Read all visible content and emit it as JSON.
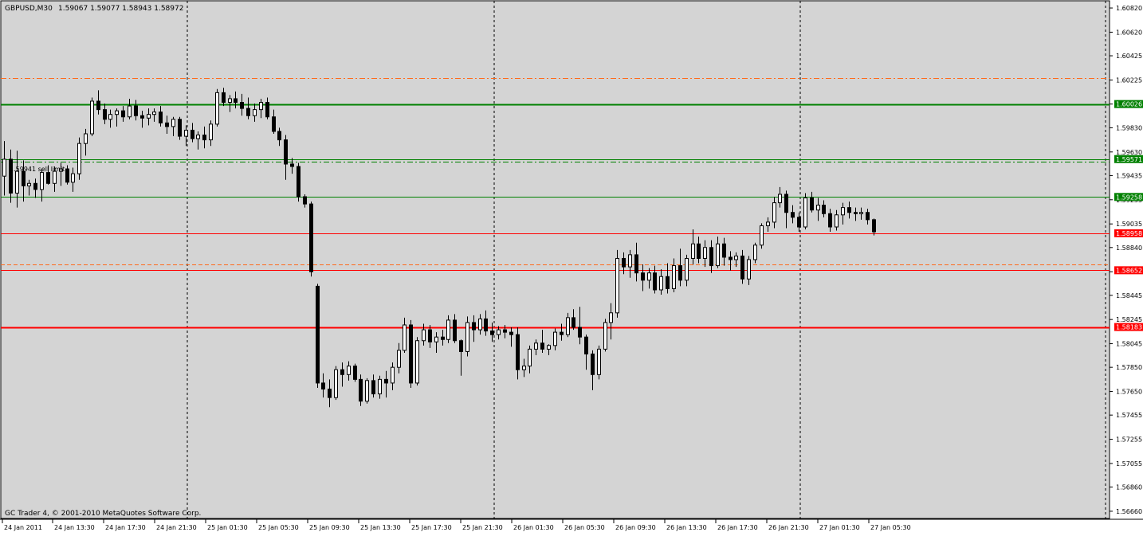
{
  "header": {
    "symbol_label": "GBPUSD,M30",
    "ohlc_text": "1.59067 1.59077 1.58943 1.58972"
  },
  "footer": {
    "copyright": "GC Trader 4, © 2001-2010 MetaQuotes Software Corp."
  },
  "order_label": "1.59941 sell limit",
  "colors": {
    "background": "#d4d4d4",
    "grid": "#000000",
    "candle_bull": "#ffffff",
    "candle_bear": "#000000",
    "green_level": "#008000",
    "red_level": "#ff0000",
    "orange_dash": "#ff6a1a"
  },
  "chart_data": {
    "type": "candlestick",
    "symbol": "GBPUSD",
    "timeframe": "M30",
    "ylim": [
      1.5662,
      1.6084
    ],
    "y_ticks": [
      "1.60820",
      "1.60620",
      "1.60425",
      "1.60225",
      "1.60026",
      "1.59830",
      "1.59630",
      "1.59435",
      "1.59235",
      "1.59035",
      "1.58840",
      "1.58640",
      "1.58445",
      "1.58245",
      "1.58045",
      "1.57850",
      "1.57650",
      "1.57455",
      "1.57255",
      "1.57055",
      "1.56860",
      "1.56660"
    ],
    "x_ticks": [
      "24 Jan 2011",
      "24 Jan 13:30",
      "24 Jan 17:30",
      "24 Jan 21:30",
      "25 Jan 01:30",
      "25 Jan 05:30",
      "25 Jan 09:30",
      "25 Jan 13:30",
      "25 Jan 17:30",
      "25 Jan 21:30",
      "26 Jan 01:30",
      "26 Jan 05:30",
      "26 Jan 09:30",
      "26 Jan 13:30",
      "26 Jan 17:30",
      "26 Jan 21:30",
      "27 Jan 01:30",
      "27 Jan 05:30"
    ],
    "levels": [
      {
        "price": 1.60026,
        "label": "1.60026",
        "color": "#008000",
        "style": "solid",
        "tag": true,
        "thick": true
      },
      {
        "price": 1.59571,
        "label": "1.59571",
        "color": "#008000",
        "style": "solid",
        "tag": true
      },
      {
        "price": 1.59258,
        "label": "1.59258",
        "color": "#008000",
        "style": "solid",
        "tag": true
      },
      {
        "price": 1.58958,
        "label": "1.58958",
        "color": "#ff0000",
        "style": "solid",
        "tag": true
      },
      {
        "price": 1.58652,
        "label": "1.58652",
        "color": "#ff0000",
        "style": "solid",
        "tag": true
      },
      {
        "price": 1.58183,
        "label": "1.58183",
        "color": "#ff0000",
        "style": "solid",
        "tag": true,
        "thick": true
      },
      {
        "price": 1.6024,
        "label": "",
        "color": "#ff6a1a",
        "style": "dashdot",
        "tag": false
      },
      {
        "price": 1.5955,
        "label": "",
        "color": "#008000",
        "style": "dashdot",
        "tag": false
      },
      {
        "price": 1.587,
        "label": "",
        "color": "#ff6a1a",
        "style": "dashed",
        "tag": false
      }
    ],
    "candles": [
      [
        1.5943,
        1.5972,
        1.5927,
        1.5957
      ],
      [
        1.5957,
        1.5965,
        1.5921,
        1.5929
      ],
      [
        1.5929,
        1.5964,
        1.5917,
        1.5947
      ],
      [
        1.5947,
        1.5956,
        1.5922,
        1.5935
      ],
      [
        1.5935,
        1.594,
        1.5927,
        1.5937
      ],
      [
        1.5937,
        1.5941,
        1.5925,
        1.5932
      ],
      [
        1.5932,
        1.5949,
        1.5922,
        1.5946
      ],
      [
        1.5946,
        1.5952,
        1.5936,
        1.5937
      ],
      [
        1.5937,
        1.5951,
        1.593,
        1.5947
      ],
      [
        1.5947,
        1.5954,
        1.5935,
        1.5949
      ],
      [
        1.5949,
        1.5952,
        1.5936,
        1.5938
      ],
      [
        1.5938,
        1.595,
        1.593,
        1.5945
      ],
      [
        1.5945,
        1.5975,
        1.594,
        1.597
      ],
      [
        1.597,
        1.5982,
        1.596,
        1.5978
      ],
      [
        1.5978,
        1.6008,
        1.5976,
        1.6005
      ],
      [
        1.6005,
        1.6014,
        1.5994,
        1.5998
      ],
      [
        1.5998,
        1.6003,
        1.5986,
        1.599
      ],
      [
        1.599,
        1.5998,
        1.5983,
        1.5994
      ],
      [
        1.5994,
        1.5999,
        1.5984,
        1.5997
      ],
      [
        1.5997,
        1.6001,
        1.5988,
        1.5992
      ],
      [
        1.5992,
        1.6007,
        1.599,
        1.6001
      ],
      [
        1.6001,
        1.6006,
        1.5989,
        1.5993
      ],
      [
        1.5993,
        1.5997,
        1.5983,
        1.5991
      ],
      [
        1.5991,
        1.5999,
        1.5985,
        1.5994
      ],
      [
        1.5994,
        1.5999,
        1.5988,
        1.5996
      ],
      [
        1.5996,
        1.6001,
        1.5984,
        1.5987
      ],
      [
        1.5987,
        1.5993,
        1.5978,
        1.5984
      ],
      [
        1.5984,
        1.5992,
        1.5976,
        1.599
      ],
      [
        1.599,
        1.5992,
        1.5973,
        1.5976
      ],
      [
        1.5976,
        1.5985,
        1.5968,
        1.5981
      ],
      [
        1.5981,
        1.5987,
        1.5971,
        1.5974
      ],
      [
        1.5974,
        1.598,
        1.5965,
        1.5977
      ],
      [
        1.5977,
        1.5984,
        1.5966,
        1.5973
      ],
      [
        1.5973,
        1.5989,
        1.5968,
        1.5986
      ],
      [
        1.5986,
        1.6015,
        1.5984,
        1.6012
      ],
      [
        1.6012,
        1.6016,
        1.6001,
        1.6004
      ],
      [
        1.6004,
        1.601,
        1.5996,
        1.6007
      ],
      [
        1.6007,
        1.6013,
        1.5999,
        1.6004
      ],
      [
        1.6004,
        1.6011,
        1.5993,
        1.5999
      ],
      [
        1.5999,
        1.6008,
        1.599,
        1.5993
      ],
      [
        1.5993,
        1.6003,
        1.5988,
        1.5998
      ],
      [
        1.5998,
        1.6007,
        1.5991,
        1.6004
      ],
      [
        1.6004,
        1.6008,
        1.599,
        1.5992
      ],
      [
        1.5992,
        1.5998,
        1.5978,
        1.598
      ],
      [
        1.598,
        1.5983,
        1.5968,
        1.5973
      ],
      [
        1.5973,
        1.5977,
        1.594,
        1.5953
      ],
      [
        1.5953,
        1.5958,
        1.5945,
        1.5951
      ],
      [
        1.5951,
        1.5954,
        1.5922,
        1.5926
      ],
      [
        1.5926,
        1.5928,
        1.5917,
        1.592
      ],
      [
        1.592,
        1.5922,
        1.586,
        1.5864
      ],
      [
        1.5852,
        1.5854,
        1.5768,
        1.5772
      ],
      [
        1.5772,
        1.578,
        1.576,
        1.5767
      ],
      [
        1.5767,
        1.5775,
        1.5752,
        1.576
      ],
      [
        1.576,
        1.5786,
        1.5758,
        1.5783
      ],
      [
        1.5783,
        1.5789,
        1.5769,
        1.5779
      ],
      [
        1.5779,
        1.579,
        1.5774,
        1.5786
      ],
      [
        1.5786,
        1.5788,
        1.5773,
        1.5775
      ],
      [
        1.5775,
        1.5779,
        1.5753,
        1.5757
      ],
      [
        1.5757,
        1.5776,
        1.5755,
        1.5774
      ],
      [
        1.5774,
        1.5779,
        1.576,
        1.5763
      ],
      [
        1.5763,
        1.5778,
        1.5759,
        1.5775
      ],
      [
        1.5775,
        1.5782,
        1.576,
        1.5772
      ],
      [
        1.5772,
        1.5789,
        1.5766,
        1.5785
      ],
      [
        1.5785,
        1.5805,
        1.578,
        1.5799
      ],
      [
        1.5799,
        1.5826,
        1.5797,
        1.582
      ],
      [
        1.582,
        1.5824,
        1.5768,
        1.5772
      ],
      [
        1.5772,
        1.581,
        1.577,
        1.5807
      ],
      [
        1.5807,
        1.5821,
        1.5803,
        1.5816
      ],
      [
        1.5816,
        1.582,
        1.5801,
        1.5806
      ],
      [
        1.5806,
        1.5814,
        1.5797,
        1.581
      ],
      [
        1.581,
        1.5816,
        1.5803,
        1.5808
      ],
      [
        1.5808,
        1.5828,
        1.5805,
        1.5824
      ],
      [
        1.5824,
        1.5829,
        1.5805,
        1.5807
      ],
      [
        1.5807,
        1.5808,
        1.5778,
        1.5798
      ],
      [
        1.5798,
        1.5827,
        1.5794,
        1.5822
      ],
      [
        1.5822,
        1.5828,
        1.5806,
        1.5816
      ],
      [
        1.5816,
        1.5829,
        1.5812,
        1.5825
      ],
      [
        1.5825,
        1.5832,
        1.5811,
        1.5815
      ],
      [
        1.5815,
        1.5822,
        1.5806,
        1.5812
      ],
      [
        1.5812,
        1.5819,
        1.5808,
        1.5816
      ],
      [
        1.5816,
        1.582,
        1.5809,
        1.5814
      ],
      [
        1.5814,
        1.5818,
        1.5802,
        1.5812
      ],
      [
        1.5812,
        1.5818,
        1.5775,
        1.5783
      ],
      [
        1.5783,
        1.5792,
        1.5777,
        1.5786
      ],
      [
        1.5786,
        1.5803,
        1.578,
        1.58
      ],
      [
        1.58,
        1.5808,
        1.5795,
        1.5805
      ],
      [
        1.5805,
        1.5816,
        1.5797,
        1.58
      ],
      [
        1.58,
        1.5804,
        1.5795,
        1.5803
      ],
      [
        1.5803,
        1.5817,
        1.5799,
        1.5814
      ],
      [
        1.5814,
        1.5821,
        1.5807,
        1.5812
      ],
      [
        1.5812,
        1.583,
        1.581,
        1.5826
      ],
      [
        1.5826,
        1.5833,
        1.5816,
        1.5818
      ],
      [
        1.5818,
        1.5835,
        1.5804,
        1.581
      ],
      [
        1.581,
        1.5812,
        1.5783,
        1.5796
      ],
      [
        1.5796,
        1.5799,
        1.5766,
        1.5779
      ],
      [
        1.5779,
        1.5803,
        1.5775,
        1.58
      ],
      [
        1.58,
        1.5825,
        1.5798,
        1.5822
      ],
      [
        1.5822,
        1.5838,
        1.5808,
        1.583
      ],
      [
        1.583,
        1.5882,
        1.5826,
        1.5875
      ],
      [
        1.5875,
        1.588,
        1.5862,
        1.5868
      ],
      [
        1.5868,
        1.5882,
        1.5859,
        1.5878
      ],
      [
        1.5878,
        1.5888,
        1.5856,
        1.5863
      ],
      [
        1.5863,
        1.587,
        1.5848,
        1.5857
      ],
      [
        1.5857,
        1.5867,
        1.585,
        1.5863
      ],
      [
        1.5863,
        1.5869,
        1.5846,
        1.5849
      ],
      [
        1.5849,
        1.5866,
        1.5845,
        1.586
      ],
      [
        1.586,
        1.5871,
        1.5846,
        1.585
      ],
      [
        1.585,
        1.5875,
        1.5847,
        1.5869
      ],
      [
        1.5869,
        1.5883,
        1.5852,
        1.5857
      ],
      [
        1.5857,
        1.5878,
        1.5852,
        1.5875
      ],
      [
        1.5875,
        1.5899,
        1.587,
        1.5887
      ],
      [
        1.5887,
        1.5893,
        1.5871,
        1.5875
      ],
      [
        1.5875,
        1.589,
        1.5868,
        1.5884
      ],
      [
        1.5884,
        1.589,
        1.5863,
        1.5869
      ],
      [
        1.5869,
        1.5893,
        1.5867,
        1.5887
      ],
      [
        1.5887,
        1.5892,
        1.5869,
        1.5876
      ],
      [
        1.5876,
        1.5881,
        1.5865,
        1.5874
      ],
      [
        1.5874,
        1.588,
        1.5868,
        1.5877
      ],
      [
        1.5877,
        1.5882,
        1.5854,
        1.5858
      ],
      [
        1.5858,
        1.5877,
        1.5853,
        1.5874
      ],
      [
        1.5874,
        1.5888,
        1.5871,
        1.5886
      ],
      [
        1.5886,
        1.5904,
        1.5883,
        1.5902
      ],
      [
        1.5902,
        1.5909,
        1.5897,
        1.5905
      ],
      [
        1.5905,
        1.5926,
        1.59,
        1.5921
      ],
      [
        1.5921,
        1.5934,
        1.5917,
        1.5928
      ],
      [
        1.5928,
        1.5931,
        1.59,
        1.5913
      ],
      [
        1.5913,
        1.5919,
        1.5904,
        1.5909
      ],
      [
        1.5909,
        1.5913,
        1.5897,
        1.5901
      ],
      [
        1.5901,
        1.5929,
        1.5899,
        1.5925
      ],
      [
        1.5925,
        1.593,
        1.5913,
        1.5915
      ],
      [
        1.5915,
        1.5925,
        1.5906,
        1.5919
      ],
      [
        1.5919,
        1.5923,
        1.5909,
        1.5912
      ],
      [
        1.5912,
        1.5916,
        1.5897,
        1.5901
      ],
      [
        1.5901,
        1.5915,
        1.5898,
        1.5911
      ],
      [
        1.5911,
        1.5921,
        1.5903,
        1.5917
      ],
      [
        1.5917,
        1.5922,
        1.5908,
        1.5913
      ],
      [
        1.5913,
        1.5917,
        1.5906,
        1.5912
      ],
      [
        1.5912,
        1.5917,
        1.5907,
        1.5913
      ],
      [
        1.5913,
        1.5916,
        1.5903,
        1.5907
      ],
      [
        1.5907,
        1.5908,
        1.5894,
        1.5897
      ]
    ]
  }
}
